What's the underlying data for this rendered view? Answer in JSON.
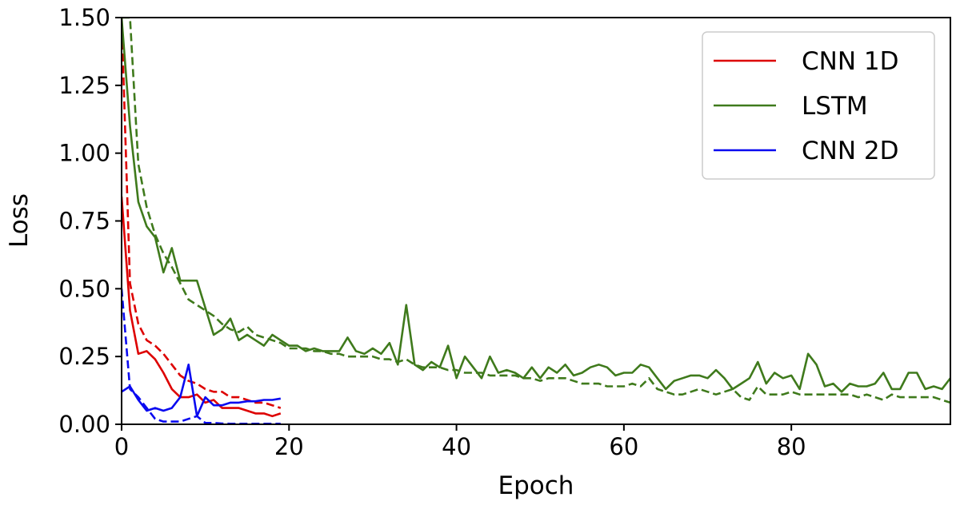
{
  "chart_data": {
    "type": "line",
    "title": "",
    "xlabel": "Epoch",
    "ylabel": "Loss",
    "xlim": [
      0,
      99
    ],
    "ylim": [
      0,
      1.5
    ],
    "x_ticks": [
      "0",
      "20",
      "40",
      "60",
      "80"
    ],
    "y_ticks": [
      "0.00",
      "0.25",
      "0.50",
      "0.75",
      "1.00",
      "1.25",
      "1.50"
    ],
    "grid": false,
    "legend_position": "top-right",
    "legend": [
      {
        "label": "CNN 1D",
        "color": "#dd0000"
      },
      {
        "label": "LSTM",
        "color": "#3f7a1c"
      },
      {
        "label": "CNN 2D",
        "color": "#0a0af0"
      }
    ],
    "series": [
      {
        "model": "CNN 1D",
        "style": "solid",
        "color": "#dd0000",
        "x": [
          0,
          1,
          2,
          3,
          4,
          5,
          6,
          7,
          8,
          9,
          10,
          11,
          12,
          13,
          14,
          15,
          16,
          17,
          18,
          19
        ],
        "values": [
          0.84,
          0.42,
          0.26,
          0.27,
          0.24,
          0.19,
          0.13,
          0.1,
          0.1,
          0.11,
          0.08,
          0.09,
          0.06,
          0.06,
          0.06,
          0.05,
          0.04,
          0.04,
          0.03,
          0.04
        ]
      },
      {
        "model": "CNN 1D",
        "style": "dashed",
        "color": "#dd0000",
        "x": [
          0,
          1,
          2,
          3,
          4,
          5,
          6,
          7,
          8,
          9,
          10,
          11,
          12,
          13,
          14,
          15,
          16,
          17,
          18,
          19
        ],
        "values": [
          1.5,
          0.52,
          0.37,
          0.31,
          0.29,
          0.26,
          0.22,
          0.18,
          0.16,
          0.15,
          0.13,
          0.12,
          0.12,
          0.1,
          0.1,
          0.09,
          0.08,
          0.08,
          0.07,
          0.06
        ]
      },
      {
        "model": "CNN 2D",
        "style": "solid",
        "color": "#0a0af0",
        "x": [
          0,
          1,
          2,
          3,
          4,
          5,
          6,
          7,
          8,
          9,
          10,
          11,
          12,
          13,
          14,
          15,
          16,
          17,
          18,
          19
        ],
        "values": [
          0.12,
          0.14,
          0.09,
          0.05,
          0.06,
          0.05,
          0.06,
          0.1,
          0.22,
          0.03,
          0.1,
          0.07,
          0.07,
          0.08,
          0.08,
          0.085,
          0.085,
          0.09,
          0.09,
          0.095
        ]
      },
      {
        "model": "CNN 2D",
        "style": "dashed",
        "color": "#0a0af0",
        "x": [
          0,
          1,
          2,
          3,
          4,
          5,
          6,
          7,
          8,
          9,
          10,
          11,
          12,
          13,
          14,
          15,
          16,
          17,
          18,
          19
        ],
        "values": [
          0.5,
          0.13,
          0.1,
          0.06,
          0.02,
          0.01,
          0.01,
          0.01,
          0.02,
          0.03,
          0.005,
          0.005,
          0.003,
          0.002,
          0.002,
          0.002,
          0.002,
          0.002,
          0.002,
          0.002
        ]
      },
      {
        "model": "LSTM",
        "style": "solid",
        "color": "#3f7a1c",
        "x": [
          0,
          1,
          2,
          3,
          4,
          5,
          6,
          7,
          8,
          9,
          10,
          11,
          12,
          13,
          14,
          15,
          16,
          17,
          18,
          19,
          20,
          21,
          22,
          23,
          24,
          25,
          26,
          27,
          28,
          29,
          30,
          31,
          32,
          33,
          34,
          35,
          36,
          37,
          38,
          39,
          40,
          41,
          42,
          43,
          44,
          45,
          46,
          47,
          48,
          49,
          50,
          51,
          52,
          53,
          54,
          55,
          56,
          57,
          58,
          59,
          60,
          61,
          62,
          63,
          64,
          65,
          66,
          67,
          68,
          69,
          70,
          71,
          72,
          73,
          74,
          75,
          76,
          77,
          78,
          79,
          80,
          81,
          82,
          83,
          84,
          85,
          86,
          87,
          88,
          89,
          90,
          91,
          92,
          93,
          94,
          95,
          96,
          97,
          98,
          99
        ],
        "values": [
          1.5,
          1.1,
          0.82,
          0.73,
          0.69,
          0.56,
          0.65,
          0.53,
          0.53,
          0.53,
          0.43,
          0.33,
          0.35,
          0.39,
          0.31,
          0.33,
          0.31,
          0.29,
          0.33,
          0.31,
          0.29,
          0.29,
          0.27,
          0.28,
          0.27,
          0.27,
          0.27,
          0.32,
          0.27,
          0.26,
          0.28,
          0.26,
          0.3,
          0.22,
          0.44,
          0.22,
          0.2,
          0.23,
          0.21,
          0.29,
          0.17,
          0.25,
          0.21,
          0.17,
          0.25,
          0.19,
          0.2,
          0.19,
          0.17,
          0.21,
          0.17,
          0.21,
          0.19,
          0.22,
          0.18,
          0.19,
          0.21,
          0.22,
          0.21,
          0.18,
          0.19,
          0.19,
          0.22,
          0.21,
          0.17,
          0.13,
          0.16,
          0.17,
          0.18,
          0.18,
          0.17,
          0.2,
          0.17,
          0.13,
          0.15,
          0.17,
          0.23,
          0.15,
          0.19,
          0.17,
          0.18,
          0.13,
          0.26,
          0.22,
          0.14,
          0.15,
          0.12,
          0.15,
          0.14,
          0.14,
          0.15,
          0.19,
          0.13,
          0.13,
          0.19,
          0.19,
          0.13,
          0.14,
          0.13,
          0.17
        ]
      },
      {
        "model": "LSTM",
        "style": "dashed",
        "color": "#3f7a1c",
        "x": [
          0,
          1,
          2,
          3,
          4,
          5,
          6,
          7,
          8,
          9,
          10,
          11,
          12,
          13,
          14,
          15,
          16,
          17,
          18,
          19,
          20,
          21,
          22,
          23,
          24,
          25,
          26,
          27,
          28,
          29,
          30,
          31,
          32,
          33,
          34,
          35,
          36,
          37,
          38,
          39,
          40,
          41,
          42,
          43,
          44,
          45,
          46,
          47,
          48,
          49,
          50,
          51,
          52,
          53,
          54,
          55,
          56,
          57,
          58,
          59,
          60,
          61,
          62,
          63,
          64,
          65,
          66,
          67,
          68,
          69,
          70,
          71,
          72,
          73,
          74,
          75,
          76,
          77,
          78,
          79,
          80,
          81,
          82,
          83,
          84,
          85,
          86,
          87,
          88,
          89,
          90,
          91,
          92,
          93,
          94,
          95,
          96,
          97,
          98,
          99
        ],
        "values": [
          1.5,
          1.5,
          0.96,
          0.8,
          0.7,
          0.63,
          0.58,
          0.52,
          0.46,
          0.44,
          0.42,
          0.4,
          0.37,
          0.35,
          0.34,
          0.36,
          0.33,
          0.32,
          0.31,
          0.3,
          0.28,
          0.28,
          0.28,
          0.27,
          0.27,
          0.26,
          0.26,
          0.25,
          0.25,
          0.25,
          0.25,
          0.24,
          0.24,
          0.23,
          0.24,
          0.22,
          0.21,
          0.21,
          0.21,
          0.2,
          0.2,
          0.19,
          0.19,
          0.19,
          0.18,
          0.18,
          0.18,
          0.18,
          0.17,
          0.17,
          0.16,
          0.17,
          0.17,
          0.17,
          0.16,
          0.15,
          0.15,
          0.15,
          0.14,
          0.14,
          0.14,
          0.15,
          0.14,
          0.17,
          0.13,
          0.12,
          0.11,
          0.11,
          0.12,
          0.13,
          0.12,
          0.11,
          0.12,
          0.13,
          0.1,
          0.09,
          0.14,
          0.11,
          0.11,
          0.11,
          0.12,
          0.11,
          0.11,
          0.11,
          0.11,
          0.11,
          0.11,
          0.11,
          0.1,
          0.11,
          0.1,
          0.09,
          0.11,
          0.1,
          0.1,
          0.1,
          0.1,
          0.1,
          0.09,
          0.08
        ]
      }
    ]
  }
}
